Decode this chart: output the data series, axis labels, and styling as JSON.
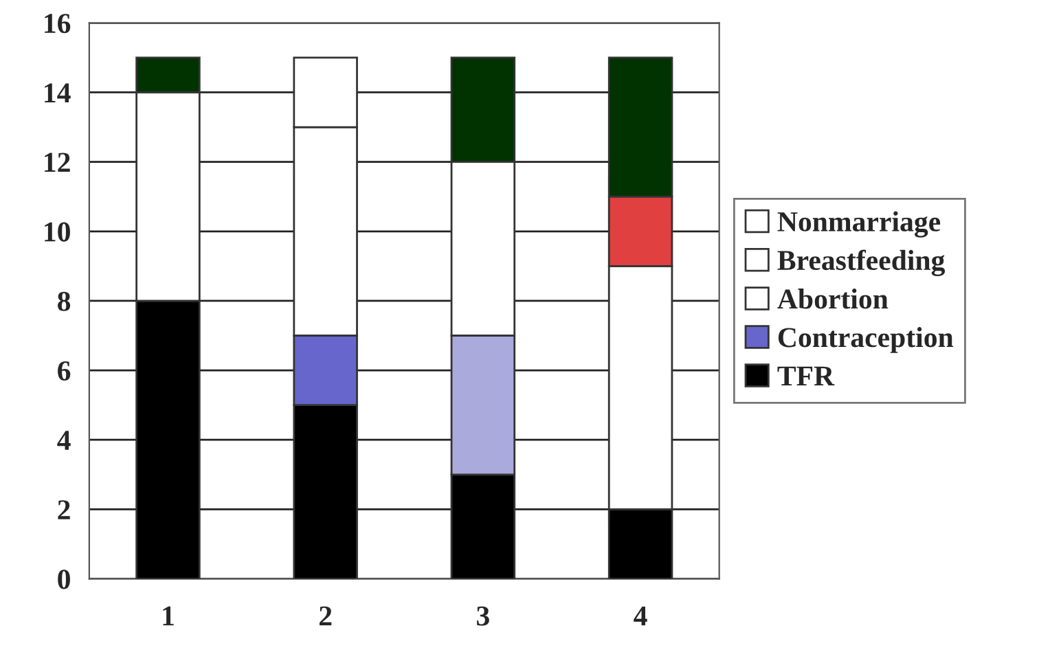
{
  "chart_data": {
    "type": "bar",
    "stacked": true,
    "categories": [
      "1",
      "2",
      "3",
      "4"
    ],
    "series": [
      {
        "name": "TFR",
        "color": "#000000",
        "values": [
          8,
          5,
          3,
          2
        ],
        "colors": [
          "#000000",
          "#000000",
          "#000000",
          "#000000"
        ]
      },
      {
        "name": "Contraception",
        "color": "#6666cc",
        "values": [
          0,
          2,
          4,
          0
        ],
        "colors": [
          "#6666cc",
          "#6666cc",
          "#aaaadd",
          "#6666cc"
        ]
      },
      {
        "name": "Abortion",
        "color": "#ffffff",
        "values": [
          0,
          0,
          0,
          7
        ],
        "colors": [
          "#ffffff",
          "#ffffff",
          "#ffffff",
          "#ffffff"
        ]
      },
      {
        "name": "Breastfeeding",
        "color": "#ffffff",
        "values": [
          6,
          6,
          5,
          2
        ],
        "colors": [
          "#ffffff",
          "#ffffff",
          "#ffffff",
          "#e04040"
        ]
      },
      {
        "name": "Nonmarriage",
        "color": "#ffffff",
        "values": [
          1,
          2,
          3,
          4
        ],
        "colors": [
          "#003300",
          "#ffffff",
          "#003300",
          "#003300"
        ]
      }
    ],
    "ylim": [
      0,
      16
    ],
    "yticks": [
      0,
      2,
      4,
      6,
      8,
      10,
      12,
      14,
      16
    ],
    "grid": "y",
    "legend": "right"
  }
}
